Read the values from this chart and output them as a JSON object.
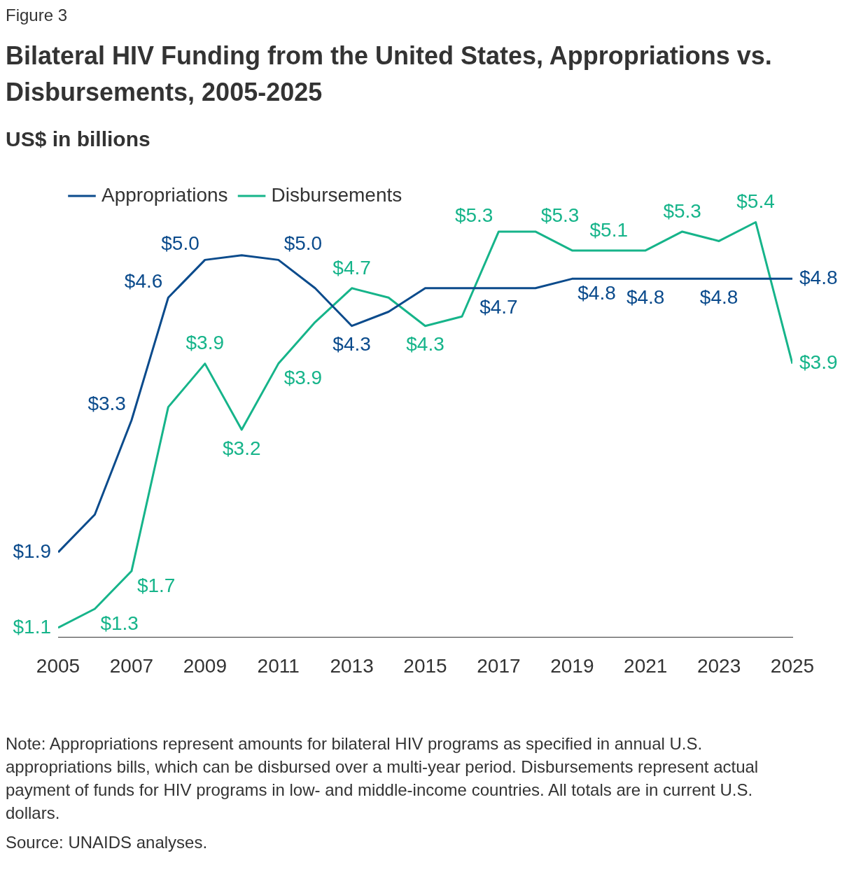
{
  "chart_data": {
    "type": "line",
    "title": "Bilateral HIV Funding from the United States, Appropriations vs. Disbursements, 2005-2025",
    "subtitle": "US$ in billions",
    "x": [
      2005,
      2006,
      2007,
      2008,
      2009,
      2010,
      2011,
      2012,
      2013,
      2014,
      2015,
      2016,
      2017,
      2018,
      2019,
      2020,
      2021,
      2022,
      2023,
      2024,
      2025
    ],
    "xlim": [
      2005,
      2025
    ],
    "xticks": [
      2005,
      2007,
      2009,
      2011,
      2013,
      2015,
      2017,
      2019,
      2021,
      2023,
      2025
    ],
    "grid": false,
    "legend": "top left",
    "marker": "none",
    "line_style": "solid",
    "series": [
      {
        "name": "Appropriations",
        "color": "#0b4b8c",
        "values": [
          1.9,
          2.3,
          3.3,
          4.6,
          5.0,
          5.05,
          5.0,
          4.7,
          4.3,
          4.45,
          4.7,
          4.7,
          4.7,
          4.7,
          4.8,
          4.8,
          4.8,
          4.8,
          4.8,
          4.8,
          4.8
        ],
        "value_labels": [
          "$1.9",
          null,
          "$3.3",
          "$4.6",
          "$5.0",
          null,
          "$5.0",
          null,
          "$4.3",
          null,
          null,
          null,
          "$4.7",
          null,
          "$4.8",
          null,
          "$4.8",
          null,
          "$4.8",
          null,
          "$4.8"
        ]
      },
      {
        "name": "Disbursements",
        "color": "#16b48a",
        "values": [
          1.1,
          1.3,
          1.7,
          3.44,
          3.9,
          3.2,
          3.9,
          4.34,
          4.7,
          4.6,
          4.3,
          4.4,
          5.3,
          5.3,
          5.1,
          5.1,
          5.1,
          5.3,
          5.2,
          5.4,
          3.9
        ],
        "value_labels": [
          "$1.1",
          "$1.3",
          "$1.7",
          null,
          "$3.9",
          "$3.2",
          "$3.9",
          null,
          "$4.7",
          null,
          "$4.3",
          null,
          "$5.3",
          "$5.3",
          null,
          "$5.1",
          null,
          "$5.3",
          null,
          "$5.4",
          "$3.9"
        ]
      }
    ],
    "annotations": [
      "Figure 3",
      "Note: Appropriations represent amounts for bilateral HIV programs as specified in annual U.S. appropriations bills, which can be disbursed over a multi-year period. Disbursements represent actual payment of funds for HIV programs in low- and middle-income countries. All totals are in current U.S. dollars.",
      "Source: UNAIDS analyses."
    ]
  }
}
